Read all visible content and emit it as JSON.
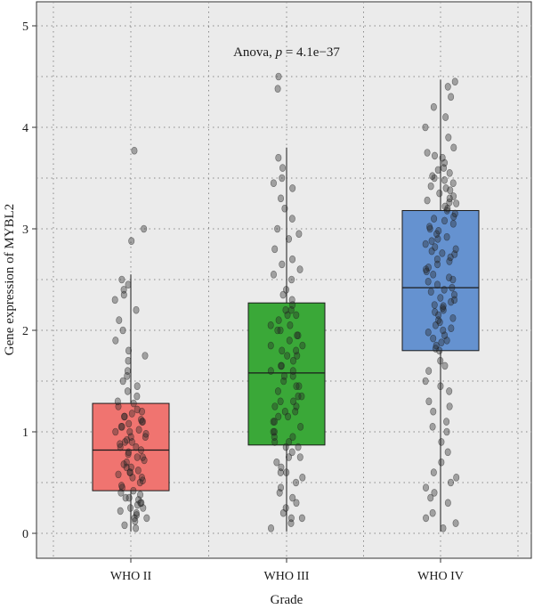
{
  "chart_data": {
    "type": "boxplot",
    "title": "",
    "annotation": {
      "prefix": "Anova, ",
      "p_symbol": "p",
      "value": " = 4.1e−37"
    },
    "xlabel": "Grade",
    "ylabel": "Gene expression of MYBL2",
    "ylim": [
      -0.25,
      5.2
    ],
    "yticks": [
      0,
      1,
      2,
      3,
      4,
      5
    ],
    "grid": true,
    "categories": [
      "WHO II",
      "WHO III",
      "WHO IV"
    ],
    "series": [
      {
        "category": "WHO II",
        "color": "#f07470",
        "whisker_low": 0.02,
        "q1": 0.42,
        "median": 0.82,
        "q3": 1.28,
        "whisker_high": 2.55,
        "outliers": [
          2.88,
          3.0,
          3.77
        ],
        "points": [
          0.05,
          0.08,
          0.12,
          0.15,
          0.18,
          0.2,
          0.22,
          0.25,
          0.28,
          0.3,
          0.33,
          0.35,
          0.38,
          0.4,
          0.42,
          0.45,
          0.47,
          0.5,
          0.52,
          0.55,
          0.58,
          0.6,
          0.62,
          0.65,
          0.68,
          0.7,
          0.72,
          0.75,
          0.78,
          0.8,
          0.82,
          0.85,
          0.88,
          0.9,
          0.92,
          0.95,
          0.98,
          1.0,
          1.02,
          1.05,
          1.08,
          1.1,
          1.12,
          1.15,
          1.18,
          1.2,
          1.22,
          1.25,
          1.28,
          1.3,
          1.35,
          1.4,
          1.45,
          1.5,
          1.55,
          1.6,
          1.7,
          1.75,
          1.8,
          1.9,
          2.0,
          2.1,
          2.2,
          2.3,
          2.35,
          2.4,
          2.45,
          2.5,
          0.3,
          0.6,
          0.9,
          1.1,
          0.15,
          0.75,
          1.0,
          0.55,
          0.35,
          0.65,
          0.85,
          1.15,
          0.25,
          0.95,
          1.05
        ]
      },
      {
        "category": "WHO III",
        "color": "#3aa838",
        "whisker_low": 0.02,
        "q1": 0.87,
        "median": 1.58,
        "q3": 2.27,
        "whisker_high": 3.8,
        "outliers": [
          4.38,
          4.5
        ],
        "points": [
          0.05,
          0.1,
          0.15,
          0.2,
          0.3,
          0.35,
          0.4,
          0.5,
          0.55,
          0.6,
          0.7,
          0.75,
          0.8,
          0.85,
          0.9,
          0.95,
          1.0,
          1.05,
          1.1,
          1.15,
          1.2,
          1.25,
          1.3,
          1.35,
          1.4,
          1.45,
          1.5,
          1.55,
          1.6,
          1.65,
          1.7,
          1.75,
          1.8,
          1.85,
          1.9,
          1.95,
          2.0,
          2.05,
          2.1,
          2.15,
          2.2,
          2.25,
          2.3,
          2.4,
          2.5,
          2.6,
          2.7,
          2.8,
          2.9,
          3.0,
          3.1,
          3.2,
          3.3,
          3.4,
          3.5,
          3.6,
          3.7,
          0.65,
          0.95,
          1.15,
          1.35,
          1.55,
          1.75,
          1.95,
          2.15,
          0.45,
          0.25,
          0.85,
          1.25,
          1.45,
          1.65,
          1.85,
          2.05,
          2.35,
          2.55,
          0.9,
          1.0,
          1.1,
          1.2,
          1.3,
          1.6,
          1.8,
          2.0,
          2.2,
          0.75,
          0.6,
          3.45,
          2.95,
          2.65,
          0.15
        ]
      },
      {
        "category": "WHO IV",
        "color": "#6592d0",
        "whisker_low": 0.02,
        "q1": 1.8,
        "median": 2.42,
        "q3": 3.18,
        "whisker_high": 4.47,
        "outliers": [],
        "points": [
          0.05,
          0.1,
          0.2,
          0.3,
          0.4,
          0.5,
          0.6,
          0.7,
          0.8,
          0.9,
          1.0,
          1.1,
          1.2,
          1.3,
          1.4,
          1.5,
          1.6,
          1.7,
          1.8,
          1.85,
          1.9,
          1.95,
          2.0,
          2.05,
          2.1,
          2.15,
          2.2,
          2.25,
          2.3,
          2.35,
          2.4,
          2.45,
          2.5,
          2.55,
          2.6,
          2.65,
          2.7,
          2.75,
          2.8,
          2.85,
          2.9,
          2.95,
          3.0,
          3.05,
          3.1,
          3.15,
          3.2,
          3.25,
          3.3,
          3.35,
          3.4,
          3.45,
          3.5,
          3.55,
          3.6,
          3.65,
          3.7,
          3.75,
          3.8,
          3.9,
          4.0,
          4.1,
          4.2,
          4.3,
          4.4,
          4.45,
          1.88,
          2.12,
          2.38,
          2.62,
          2.88,
          3.12,
          3.38,
          1.92,
          2.18,
          2.42,
          2.68,
          2.92,
          3.18,
          3.42,
          2.02,
          2.28,
          2.52,
          2.78,
          3.02,
          3.28,
          3.52,
          1.82,
          2.08,
          2.32,
          2.58,
          2.82,
          3.08,
          3.32,
          0.35,
          0.45,
          1.05,
          1.25,
          1.45,
          1.65,
          2.22,
          2.48,
          2.72,
          2.98,
          3.22,
          3.48,
          3.72,
          1.98,
          2.24,
          2.76,
          3.26,
          3.58,
          0.15,
          0.55
        ]
      }
    ]
  }
}
